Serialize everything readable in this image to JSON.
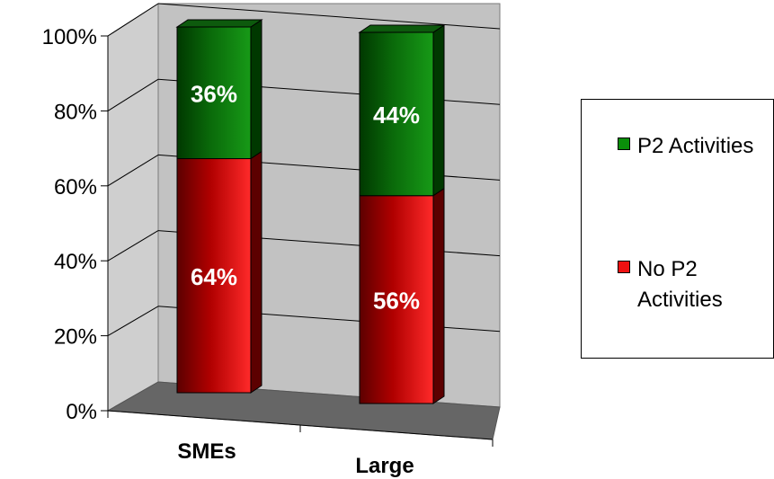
{
  "chart_data": {
    "type": "bar",
    "stacked": true,
    "percent": true,
    "three_d": true,
    "categories": [
      "SMEs",
      "Large"
    ],
    "series": [
      {
        "name": "No P2 Activities",
        "values": [
          64,
          56
        ],
        "labels": [
          "64%",
          "56%"
        ],
        "color": "#e8141b",
        "dark": "#5c0000"
      },
      {
        "name": "P2 Activities",
        "values": [
          36,
          44
        ],
        "labels": [
          "36%",
          "44%"
        ],
        "color": "#179417",
        "dark": "#003800"
      }
    ],
    "ylim": [
      0,
      100
    ],
    "yticks": [
      "0%",
      "20%",
      "40%",
      "60%",
      "80%",
      "100%"
    ],
    "grid": true,
    "legend_position": "right"
  },
  "legend": {
    "items": [
      {
        "label": "P2 Activities",
        "color": "#0a8f0a"
      },
      {
        "label": "No P2 Activities",
        "color": "#ee1111"
      }
    ]
  }
}
